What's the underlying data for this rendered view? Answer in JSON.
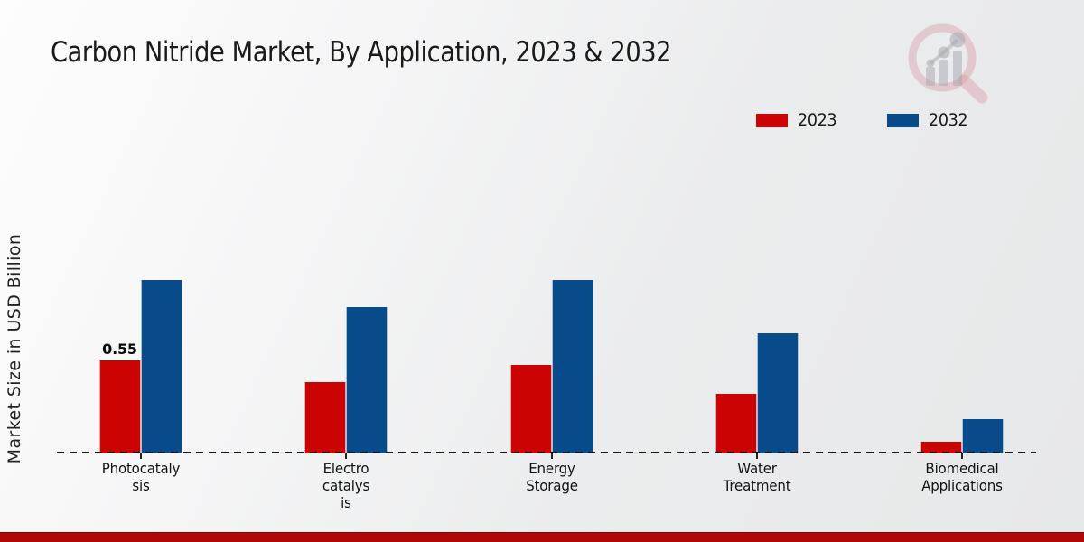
{
  "page": {
    "title": "Carbon Nitride Market, By Application, 2023 & 2032",
    "ylabel": "Market Size in USD Billion"
  },
  "legend": {
    "items": [
      {
        "label": "2023",
        "color": "#cc0303"
      },
      {
        "label": "2032",
        "color": "#084b8a"
      }
    ]
  },
  "colors": {
    "series_2023_red": "#cc0303",
    "series_2032_blue": "#084b8a",
    "footer_band": "#b00707",
    "text": "#1a1a1a",
    "baseline": "#151515"
  },
  "chart_data": {
    "type": "bar",
    "title": "Carbon Nitride Market, By Application, 2023 & 2032",
    "xlabel": "",
    "ylabel": "Market Size in USD Billion",
    "categories": [
      "Photocatalysis",
      "Electrocatalysis",
      "Energy Storage",
      "Water Treatment",
      "Biomedical Applications"
    ],
    "category_display_lines": [
      [
        "Photocataly",
        "sis"
      ],
      [
        "Electro",
        "catalys",
        "is"
      ],
      [
        "Energy",
        "Storage"
      ],
      [
        "Water",
        "Treatment"
      ],
      [
        "Biomedical",
        "Applications"
      ]
    ],
    "series": [
      {
        "name": "2023",
        "color": "#cc0303",
        "values": [
          0.55,
          0.42,
          0.52,
          0.35,
          0.07
        ]
      },
      {
        "name": "2032",
        "color": "#084b8a",
        "values": [
          1.02,
          0.86,
          1.02,
          0.71,
          0.2
        ]
      }
    ],
    "value_labels": [
      {
        "series_index": 0,
        "category_index": 0,
        "text": "0.55"
      }
    ],
    "ylim": [
      0,
      1.1
    ],
    "grid": false,
    "legend_position": "top-right",
    "baseline_style": "dashed",
    "y_ticks_visible": false
  }
}
